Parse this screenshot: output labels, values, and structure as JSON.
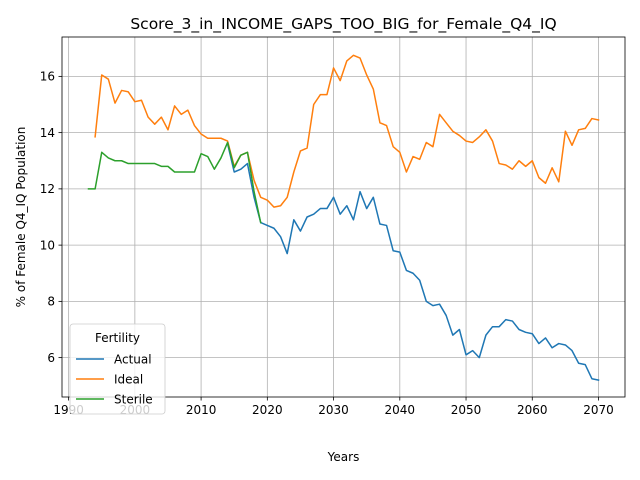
{
  "chart_data": {
    "type": "line",
    "title": "Score_3_in_INCOME_GAPS_TOO_BIG_for_Female_Q4_IQ",
    "xlabel": "Years",
    "ylabel": "% of Female Q4_IQ Population",
    "xlim": [
      1989,
      2074
    ],
    "ylim": [
      4.6,
      17.4
    ],
    "xticks": [
      1990,
      2000,
      2010,
      2020,
      2030,
      2040,
      2050,
      2060,
      2070
    ],
    "yticks": [
      6,
      8,
      10,
      12,
      14,
      16
    ],
    "grid": true,
    "legend": {
      "title": "Fertility",
      "position": "lower-left"
    },
    "series": [
      {
        "name": "Actual",
        "color": "#1f77b4",
        "x": [
          2014,
          2015,
          2016,
          2017,
          2018,
          2019,
          2020,
          2021,
          2022,
          2023,
          2024,
          2025,
          2026,
          2027,
          2028,
          2029,
          2030,
          2031,
          2032,
          2033,
          2034,
          2035,
          2036,
          2037,
          2038,
          2039,
          2040,
          2041,
          2042,
          2043,
          2044,
          2045,
          2046,
          2047,
          2048,
          2049,
          2050,
          2051,
          2052,
          2053,
          2054,
          2055,
          2056,
          2057,
          2058,
          2059,
          2060,
          2061,
          2062,
          2063,
          2064,
          2065,
          2066,
          2067,
          2068,
          2069,
          2070
        ],
        "y": [
          13.6,
          12.6,
          12.7,
          12.9,
          11.7,
          10.8,
          10.7,
          10.6,
          10.3,
          9.7,
          10.9,
          10.5,
          11.0,
          11.1,
          11.3,
          11.3,
          11.7,
          11.1,
          11.4,
          10.9,
          11.9,
          11.3,
          11.7,
          10.75,
          10.7,
          9.8,
          9.75,
          9.1,
          9.0,
          8.75,
          8.0,
          7.85,
          7.9,
          7.5,
          6.8,
          7.0,
          6.1,
          6.25,
          6.0,
          6.8,
          7.1,
          7.1,
          7.35,
          7.3,
          7.0,
          6.9,
          6.85,
          6.5,
          6.7,
          6.35,
          6.5,
          6.45,
          6.25,
          5.8,
          5.75,
          5.25,
          5.2
        ]
      },
      {
        "name": "Ideal",
        "color": "#ff7f0e",
        "x": [
          1994,
          1995,
          1996,
          1997,
          1998,
          1999,
          2000,
          2001,
          2002,
          2003,
          2004,
          2005,
          2006,
          2007,
          2008,
          2009,
          2010,
          2011,
          2012,
          2013,
          2014,
          2015,
          2016,
          2017,
          2018,
          2019,
          2020,
          2021,
          2022,
          2023,
          2024,
          2025,
          2026,
          2027,
          2028,
          2029,
          2030,
          2031,
          2032,
          2033,
          2034,
          2035,
          2036,
          2037,
          2038,
          2039,
          2040,
          2041,
          2042,
          2043,
          2044,
          2045,
          2046,
          2047,
          2048,
          2049,
          2050,
          2051,
          2052,
          2053,
          2054,
          2055,
          2056,
          2057,
          2058,
          2059,
          2060,
          2061,
          2062,
          2063,
          2064,
          2065,
          2066,
          2067,
          2068,
          2069,
          2070
        ],
        "y": [
          13.85,
          16.05,
          15.9,
          15.05,
          15.5,
          15.45,
          15.1,
          15.15,
          14.55,
          14.3,
          14.55,
          14.1,
          14.95,
          14.65,
          14.8,
          14.25,
          13.95,
          13.8,
          13.8,
          13.8,
          13.7,
          12.8,
          13.2,
          13.3,
          12.3,
          11.7,
          11.6,
          11.35,
          11.4,
          11.7,
          12.6,
          13.35,
          13.45,
          15.0,
          15.35,
          15.35,
          16.3,
          15.85,
          16.55,
          16.75,
          16.65,
          16.05,
          15.55,
          14.35,
          14.25,
          13.5,
          13.3,
          12.6,
          13.15,
          13.05,
          13.65,
          13.5,
          14.65,
          14.35,
          14.05,
          13.9,
          13.7,
          13.65,
          13.85,
          14.1,
          13.7,
          12.9,
          12.85,
          12.7,
          13.0,
          12.8,
          13.0,
          12.4,
          12.2,
          12.75,
          12.25,
          14.05,
          13.55,
          14.1,
          14.15,
          14.5,
          14.45
        ]
      },
      {
        "name": "Sterile",
        "color": "#2ca02c",
        "x": [
          1993,
          1994,
          1995,
          1996,
          1997,
          1998,
          1999,
          2000,
          2001,
          2002,
          2003,
          2004,
          2005,
          2006,
          2007,
          2008,
          2009,
          2010,
          2011,
          2012,
          2013,
          2014,
          2015,
          2016,
          2017,
          2018,
          2019
        ],
        "y": [
          12.0,
          12.0,
          13.3,
          13.1,
          13.0,
          13.0,
          12.9,
          12.9,
          12.9,
          12.9,
          12.9,
          12.8,
          12.8,
          12.6,
          12.6,
          12.6,
          12.6,
          13.25,
          13.15,
          12.7,
          13.1,
          13.65,
          12.75,
          13.2,
          13.3,
          11.9,
          10.8
        ]
      }
    ]
  }
}
